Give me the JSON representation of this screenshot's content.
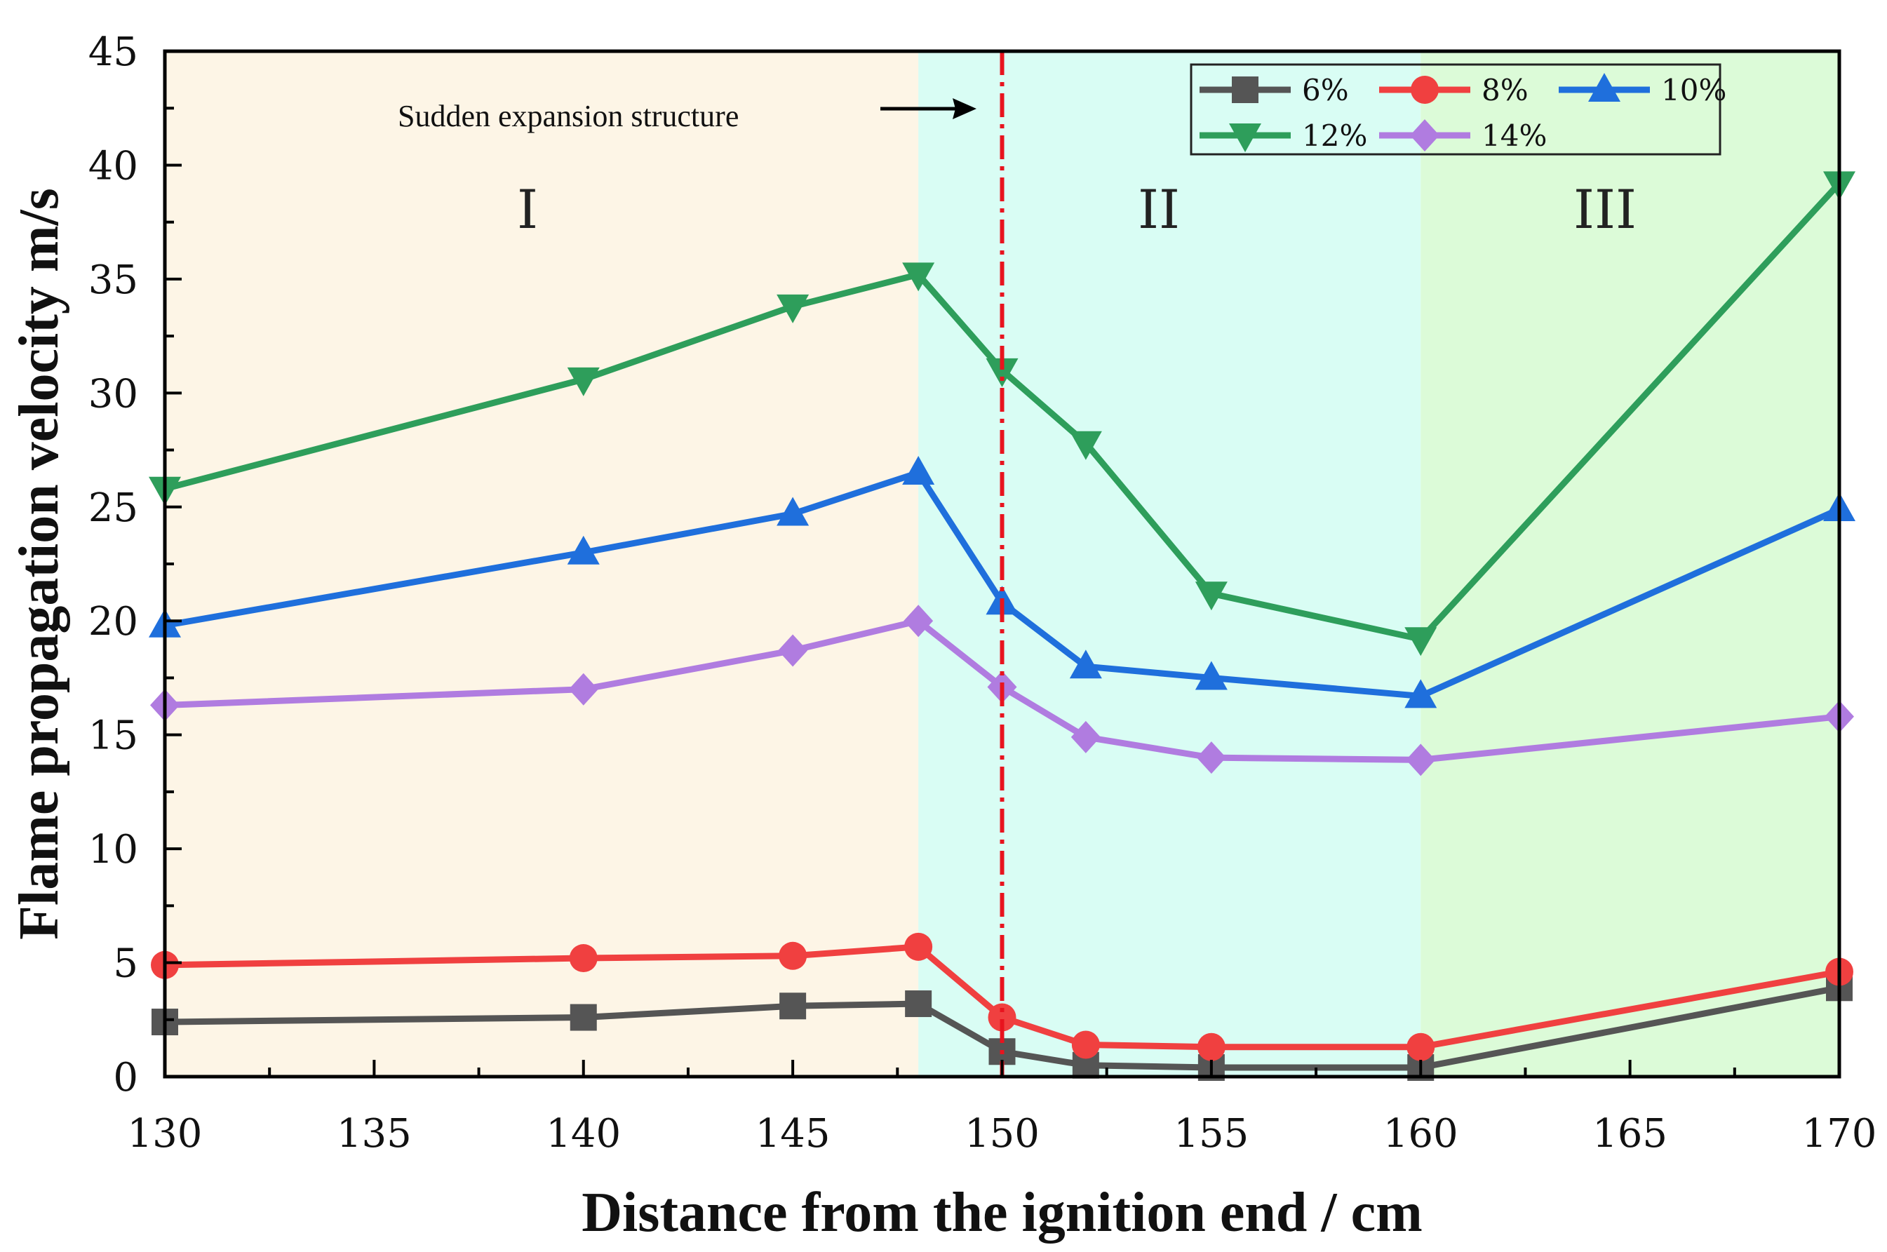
{
  "chart_data": {
    "type": "line",
    "title": "",
    "xlabel": "Distance from the ignition end / cm",
    "ylabel": "Flame propagation velocity m/s",
    "xlim": [
      130,
      170
    ],
    "ylim": [
      0,
      45
    ],
    "xticks": [
      130,
      135,
      140,
      145,
      150,
      155,
      160,
      165,
      170
    ],
    "yticks": [
      0,
      5,
      10,
      15,
      20,
      25,
      30,
      35,
      40,
      45
    ],
    "x": [
      130,
      140,
      145,
      148,
      150,
      152,
      155,
      160,
      170
    ],
    "series": [
      {
        "name": "6%",
        "color": "#555555",
        "marker": "square",
        "values": [
          2.4,
          2.6,
          3.1,
          3.2,
          1.1,
          0.5,
          0.4,
          0.4,
          3.9
        ]
      },
      {
        "name": "8%",
        "color": "#f04040",
        "marker": "circle",
        "values": [
          4.9,
          5.2,
          5.3,
          5.7,
          2.6,
          1.4,
          1.3,
          1.3,
          4.6
        ]
      },
      {
        "name": "10%",
        "color": "#1f6fdc",
        "marker": "triangle-up",
        "values": [
          19.8,
          23.0,
          24.7,
          26.5,
          20.8,
          18.0,
          17.5,
          16.7,
          24.9
        ]
      },
      {
        "name": "12%",
        "color": "#2e9e5b",
        "marker": "triangle-down",
        "values": [
          25.8,
          30.6,
          33.8,
          35.2,
          31.0,
          27.8,
          21.2,
          19.2,
          39.2
        ]
      },
      {
        "name": "14%",
        "color": "#b07ce0",
        "marker": "diamond",
        "values": [
          16.3,
          17.0,
          18.7,
          20.0,
          17.1,
          14.9,
          14.0,
          13.9,
          15.8
        ]
      }
    ],
    "regions": [
      {
        "label": "I",
        "x_range": [
          130,
          148
        ],
        "color": "#fdf5e6"
      },
      {
        "label": "II",
        "x_range": [
          148,
          160
        ],
        "color": "#d9fdf4"
      },
      {
        "label": "III",
        "x_range": [
          160,
          170
        ],
        "color": "#dcfbd8"
      }
    ],
    "reference_line": {
      "x": 150,
      "color": "#e8141e"
    },
    "annotation": {
      "text": "Sudden expansion structure"
    },
    "legend_position": "top-right"
  }
}
